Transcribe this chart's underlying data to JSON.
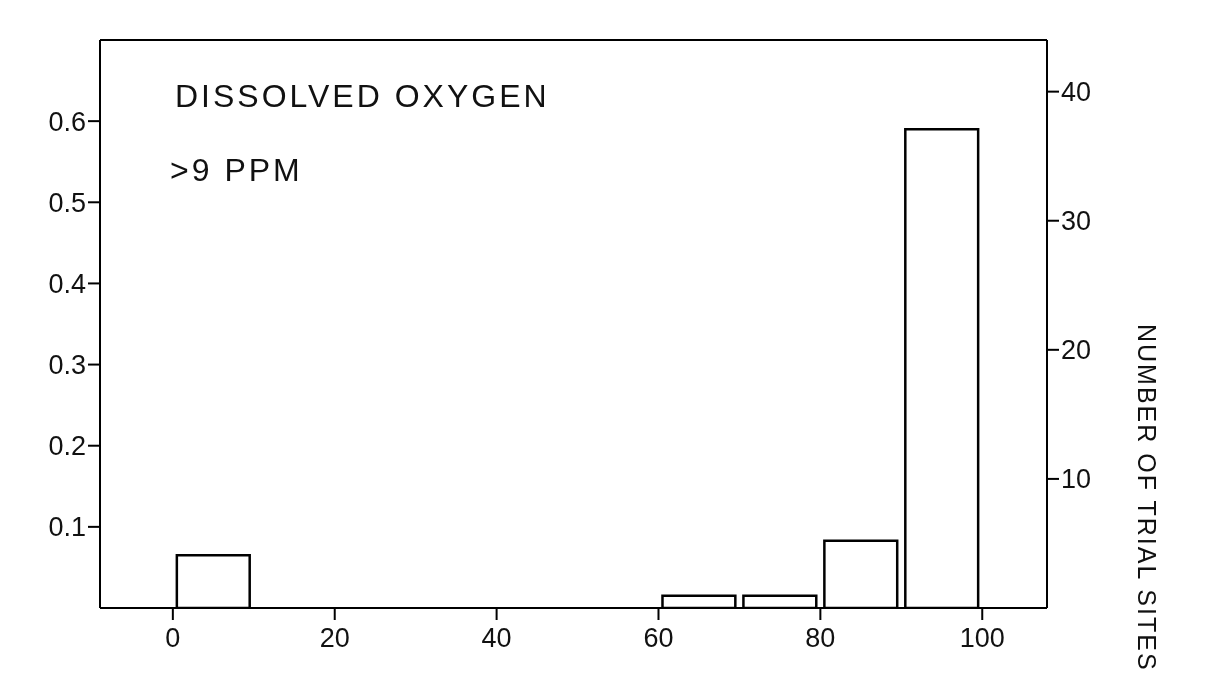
{
  "chart_data": {
    "type": "histogram",
    "title": "DISSOLVED OXYGEN",
    "subtitle": ">9 PPM",
    "y2label": "NUMBER OF TRIAL SITES",
    "bins": [
      0,
      10,
      20,
      30,
      40,
      50,
      60,
      70,
      80,
      90,
      100
    ],
    "values": [
      0.065,
      0,
      0,
      0,
      0,
      0,
      0.015,
      0.015,
      0.083,
      0.59
    ],
    "color": "#ffffff",
    "xlim": [
      -9,
      108
    ],
    "xticks": [
      0,
      20,
      40,
      60,
      80,
      100
    ],
    "ylim": [
      0,
      0.7
    ],
    "yticks": [
      0.1,
      0.2,
      0.3,
      0.4,
      0.5,
      0.6
    ],
    "y2lim": [
      0,
      44
    ],
    "y2ticks": [
      10,
      20,
      30,
      40
    ],
    "grid": false
  }
}
